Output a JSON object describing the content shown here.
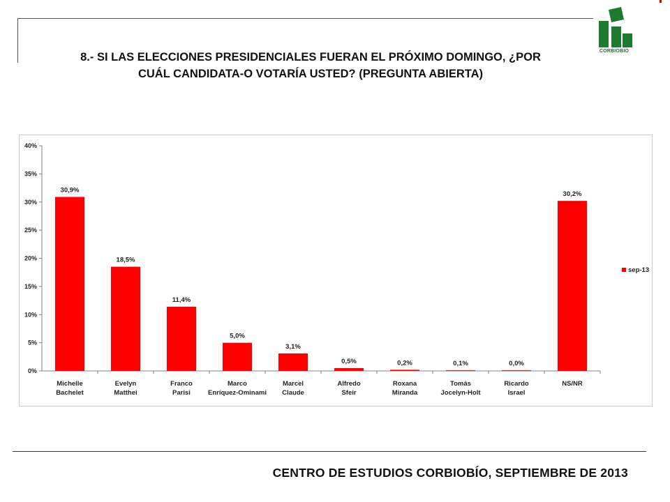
{
  "slide": {
    "title_line1": "8.- SI LAS ELECCIONES PRESIDENCIALES FUERAN EL PRÓXIMO DOMINGO, ¿POR",
    "title_line2": "CUÁL CANDIDATA-O VOTARÍA USTED? (PREGUNTA ABIERTA)",
    "logo_text": "CORBIOBIO",
    "footer": "CENTRO DE ESTUDIOS CORBIOBÍO, SEPTIEMBRE DE 2013"
  },
  "colors": {
    "bar": "#ff0000",
    "logo_green": "#1e7a2e"
  },
  "chart_data": {
    "type": "bar",
    "categories": [
      [
        "Michelle",
        "Bachelet"
      ],
      [
        "Evelyn",
        "Matthei"
      ],
      [
        "Franco",
        "Parisi"
      ],
      [
        "Marco",
        "Enríquez-Ominami"
      ],
      [
        "Marcel",
        "Claude"
      ],
      [
        "Alfredo",
        "Sfeir"
      ],
      [
        "Roxana",
        "Miranda"
      ],
      [
        "Tomás",
        "Jocelyn-Holt"
      ],
      [
        "Ricardo",
        "Israel"
      ],
      [
        "NS/NR"
      ]
    ],
    "series": [
      {
        "name": "sep-13",
        "values": [
          30.9,
          18.5,
          11.4,
          5.0,
          3.1,
          0.5,
          0.2,
          0.1,
          0.0,
          30.2
        ],
        "labels": [
          "30,9%",
          "18,5%",
          "11,4%",
          "5,0%",
          "3,1%",
          "0,5%",
          "0,2%",
          "0,1%",
          "0,0%",
          "30,2%"
        ]
      }
    ],
    "yticks": [
      "0%",
      "5%",
      "10%",
      "15%",
      "20%",
      "25%",
      "30%",
      "35%",
      "40%"
    ],
    "ylim": [
      0,
      40
    ],
    "grid": false,
    "legend_position": "right"
  }
}
